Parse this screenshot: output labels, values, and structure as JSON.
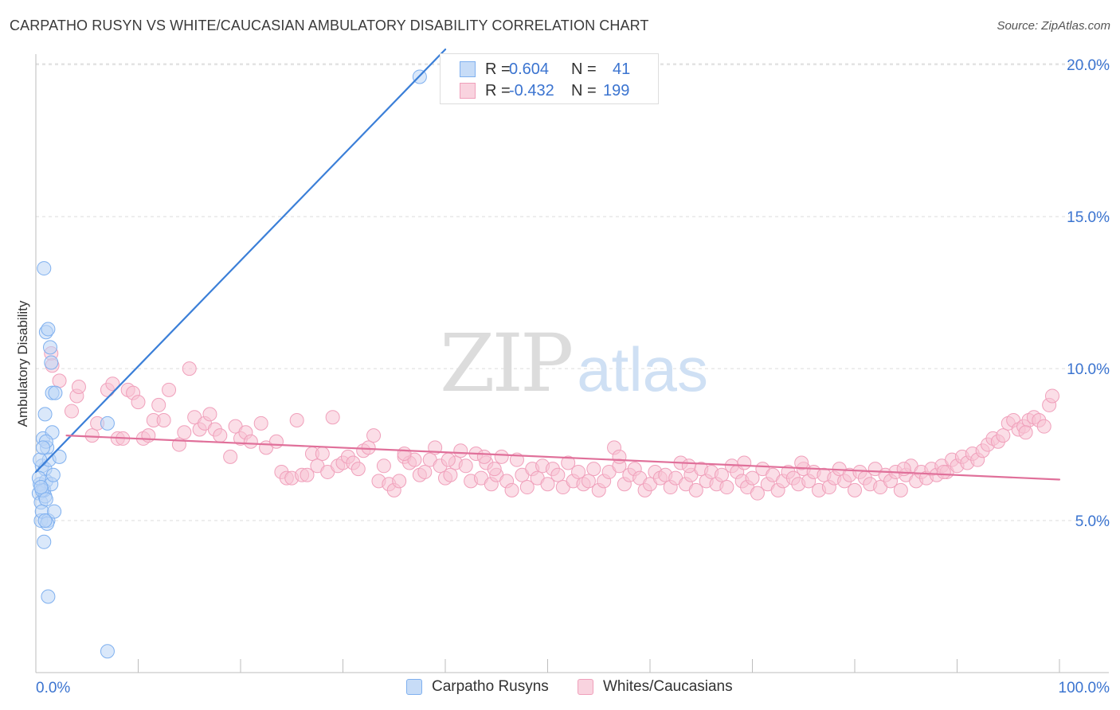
{
  "title": "CARPATHO RUSYN VS WHITE/CAUCASIAN AMBULATORY DISABILITY CORRELATION CHART",
  "source": "Source: ZipAtlas.com",
  "watermark": {
    "zip": "ZIP",
    "atlas": "atlas"
  },
  "legend": {
    "rows": [
      {
        "r_label": "R =",
        "r_value": "0.604",
        "n_label": "N =",
        "n_value": "41",
        "color": "#7fb0ef",
        "fill": "#c7dcf7"
      },
      {
        "r_label": "R =",
        "r_value": "-0.432",
        "n_label": "N =",
        "n_value": "199",
        "color": "#f0a0bb",
        "fill": "#f9d3df"
      }
    ]
  },
  "bottom_legend": [
    "Carpatho Rusyns",
    "Whites/Caucasians"
  ],
  "chart_data": {
    "type": "scatter",
    "title": "CARPATHO RUSYN VS WHITE/CAUCASIAN AMBULATORY DISABILITY CORRELATION CHART",
    "xlabel": "",
    "ylabel": "Ambulatory Disability",
    "xlim": [
      0,
      100
    ],
    "ylim": [
      0,
      21
    ],
    "x_tick_labels": [
      "0.0%",
      "100.0%"
    ],
    "y_ticks": [
      5,
      10,
      15,
      20
    ],
    "y_tick_labels": [
      "5.0%",
      "10.0%",
      "15.0%",
      "20.0%"
    ],
    "grid": true,
    "series": [
      {
        "name": "Carpatho Rusyns",
        "color": "#3b7fd8",
        "fill": "#bcd5f5",
        "stroke": "#7fb0ef",
        "trend": [
          [
            0.0,
            6.6
          ],
          [
            40.0,
            20.5
          ]
        ],
        "points": [
          [
            0.3,
            5.9
          ],
          [
            0.5,
            5.6
          ],
          [
            0.4,
            6.2
          ],
          [
            0.6,
            6.8
          ],
          [
            0.7,
            7.7
          ],
          [
            0.5,
            5.0
          ],
          [
            0.8,
            4.3
          ],
          [
            0.9,
            5.8
          ],
          [
            1.0,
            6.3
          ],
          [
            1.1,
            7.4
          ],
          [
            0.6,
            5.3
          ],
          [
            0.8,
            6.0
          ],
          [
            1.2,
            5.0
          ],
          [
            0.9,
            6.7
          ],
          [
            1.0,
            11.2
          ],
          [
            1.2,
            11.3
          ],
          [
            1.4,
            10.7
          ],
          [
            1.5,
            10.2
          ],
          [
            1.6,
            9.2
          ],
          [
            0.8,
            13.3
          ],
          [
            0.9,
            8.5
          ],
          [
            1.3,
            7.0
          ],
          [
            1.5,
            6.2
          ],
          [
            1.7,
            6.5
          ],
          [
            1.9,
            9.2
          ],
          [
            1.6,
            7.9
          ],
          [
            1.8,
            5.3
          ],
          [
            2.3,
            7.1
          ],
          [
            1.0,
            7.6
          ],
          [
            0.4,
            7.0
          ],
          [
            0.6,
            6.0
          ],
          [
            1.1,
            4.9
          ],
          [
            1.2,
            2.5
          ],
          [
            7.0,
            8.2
          ],
          [
            7.0,
            0.7
          ],
          [
            37.5,
            19.6
          ],
          [
            0.3,
            6.4
          ],
          [
            0.7,
            7.4
          ],
          [
            0.5,
            6.1
          ],
          [
            1.0,
            5.7
          ],
          [
            0.9,
            5.0
          ]
        ]
      },
      {
        "name": "Whites/Caucasians",
        "color": "#e0709a",
        "fill": "#f7c3d3",
        "stroke": "#f0a0bb",
        "trend": [
          [
            3.0,
            7.8
          ],
          [
            100.0,
            6.35
          ]
        ],
        "points": [
          [
            1.5,
            10.5
          ],
          [
            1.6,
            10.1
          ],
          [
            2.3,
            9.6
          ],
          [
            3.5,
            8.6
          ],
          [
            4.0,
            9.1
          ],
          [
            4.2,
            9.4
          ],
          [
            5.5,
            7.8
          ],
          [
            6.0,
            8.2
          ],
          [
            7.0,
            9.3
          ],
          [
            7.5,
            9.5
          ],
          [
            8.0,
            7.7
          ],
          [
            8.5,
            7.7
          ],
          [
            9.0,
            9.3
          ],
          [
            9.5,
            9.2
          ],
          [
            10.0,
            8.9
          ],
          [
            10.5,
            7.7
          ],
          [
            11.0,
            7.8
          ],
          [
            11.5,
            8.3
          ],
          [
            12.0,
            8.8
          ],
          [
            12.5,
            8.3
          ],
          [
            13.0,
            9.3
          ],
          [
            14.0,
            7.5
          ],
          [
            14.5,
            7.9
          ],
          [
            15.0,
            10.0
          ],
          [
            15.5,
            8.4
          ],
          [
            16.0,
            8.0
          ],
          [
            16.5,
            8.2
          ],
          [
            17.0,
            8.5
          ],
          [
            17.5,
            8.0
          ],
          [
            18.0,
            7.8
          ],
          [
            19.0,
            7.1
          ],
          [
            19.5,
            8.1
          ],
          [
            20.0,
            7.7
          ],
          [
            20.5,
            7.9
          ],
          [
            21.0,
            7.6
          ],
          [
            22.0,
            8.2
          ],
          [
            22.5,
            7.4
          ],
          [
            23.5,
            7.6
          ],
          [
            24.0,
            6.6
          ],
          [
            24.5,
            6.4
          ],
          [
            25.0,
            6.4
          ],
          [
            25.5,
            8.3
          ],
          [
            26.0,
            6.5
          ],
          [
            26.5,
            6.5
          ],
          [
            27.0,
            7.2
          ],
          [
            27.5,
            6.8
          ],
          [
            28.0,
            7.2
          ],
          [
            28.5,
            6.6
          ],
          [
            29.0,
            8.4
          ],
          [
            29.5,
            6.8
          ],
          [
            30.0,
            6.9
          ],
          [
            30.5,
            7.1
          ],
          [
            31.0,
            6.9
          ],
          [
            31.5,
            6.7
          ],
          [
            32.0,
            7.3
          ],
          [
            32.5,
            7.4
          ],
          [
            33.0,
            7.8
          ],
          [
            33.5,
            6.3
          ],
          [
            34.0,
            6.8
          ],
          [
            34.5,
            6.2
          ],
          [
            35.0,
            6.0
          ],
          [
            35.5,
            6.3
          ],
          [
            36.0,
            7.1
          ],
          [
            36.5,
            6.9
          ],
          [
            37.0,
            7.0
          ],
          [
            37.5,
            6.5
          ],
          [
            38.0,
            6.6
          ],
          [
            38.5,
            7.0
          ],
          [
            39.0,
            7.4
          ],
          [
            39.5,
            6.8
          ],
          [
            40.0,
            6.4
          ],
          [
            40.5,
            6.5
          ],
          [
            41.0,
            6.9
          ],
          [
            41.5,
            7.3
          ],
          [
            42.0,
            6.8
          ],
          [
            42.5,
            6.3
          ],
          [
            43.0,
            7.2
          ],
          [
            43.5,
            6.4
          ],
          [
            44.0,
            6.9
          ],
          [
            44.5,
            6.2
          ],
          [
            45.0,
            6.5
          ],
          [
            45.5,
            7.1
          ],
          [
            46.0,
            6.3
          ],
          [
            46.5,
            6.0
          ],
          [
            47.0,
            7.0
          ],
          [
            47.5,
            6.5
          ],
          [
            48.0,
            6.1
          ],
          [
            48.5,
            6.7
          ],
          [
            49.0,
            6.4
          ],
          [
            49.5,
            6.8
          ],
          [
            50.0,
            6.2
          ],
          [
            50.5,
            6.7
          ],
          [
            51.0,
            6.5
          ],
          [
            51.5,
            6.1
          ],
          [
            52.0,
            6.9
          ],
          [
            52.5,
            6.3
          ],
          [
            53.0,
            6.6
          ],
          [
            53.5,
            6.2
          ],
          [
            54.0,
            6.3
          ],
          [
            54.5,
            6.7
          ],
          [
            55.0,
            6.0
          ],
          [
            55.5,
            6.3
          ],
          [
            56.0,
            6.6
          ],
          [
            56.5,
            7.4
          ],
          [
            57.0,
            6.8
          ],
          [
            57.5,
            6.2
          ],
          [
            58.0,
            6.5
          ],
          [
            58.5,
            6.7
          ],
          [
            59.0,
            6.4
          ],
          [
            59.5,
            6.0
          ],
          [
            60.0,
            6.2
          ],
          [
            60.5,
            6.6
          ],
          [
            61.0,
            6.4
          ],
          [
            61.5,
            6.5
          ],
          [
            62.0,
            6.1
          ],
          [
            62.5,
            6.4
          ],
          [
            63.0,
            6.9
          ],
          [
            63.5,
            6.2
          ],
          [
            64.0,
            6.5
          ],
          [
            64.5,
            6.0
          ],
          [
            65.0,
            6.7
          ],
          [
            65.5,
            6.3
          ],
          [
            66.0,
            6.6
          ],
          [
            66.5,
            6.2
          ],
          [
            67.0,
            6.5
          ],
          [
            67.5,
            6.1
          ],
          [
            68.0,
            6.8
          ],
          [
            68.5,
            6.6
          ],
          [
            69.0,
            6.3
          ],
          [
            69.5,
            6.1
          ],
          [
            70.0,
            6.4
          ],
          [
            70.5,
            5.9
          ],
          [
            71.0,
            6.7
          ],
          [
            71.5,
            6.2
          ],
          [
            72.0,
            6.5
          ],
          [
            72.5,
            6.0
          ],
          [
            73.0,
            6.3
          ],
          [
            73.5,
            6.6
          ],
          [
            74.0,
            6.4
          ],
          [
            74.5,
            6.2
          ],
          [
            75.0,
            6.7
          ],
          [
            75.5,
            6.3
          ],
          [
            76.0,
            6.6
          ],
          [
            76.5,
            6.0
          ],
          [
            77.0,
            6.5
          ],
          [
            77.5,
            6.1
          ],
          [
            78.0,
            6.4
          ],
          [
            78.5,
            6.7
          ],
          [
            79.0,
            6.3
          ],
          [
            79.5,
            6.5
          ],
          [
            80.0,
            6.0
          ],
          [
            80.5,
            6.6
          ],
          [
            81.0,
            6.4
          ],
          [
            81.5,
            6.2
          ],
          [
            82.0,
            6.7
          ],
          [
            82.5,
            6.1
          ],
          [
            83.0,
            6.5
          ],
          [
            83.5,
            6.3
          ],
          [
            84.0,
            6.6
          ],
          [
            84.5,
            6.0
          ],
          [
            85.0,
            6.5
          ],
          [
            85.5,
            6.8
          ],
          [
            86.0,
            6.3
          ],
          [
            86.5,
            6.6
          ],
          [
            87.0,
            6.4
          ],
          [
            87.5,
            6.7
          ],
          [
            88.0,
            6.5
          ],
          [
            88.5,
            6.8
          ],
          [
            89.0,
            6.6
          ],
          [
            89.5,
            7.0
          ],
          [
            90.0,
            6.8
          ],
          [
            90.5,
            7.1
          ],
          [
            91.0,
            6.9
          ],
          [
            91.5,
            7.2
          ],
          [
            92.0,
            7.0
          ],
          [
            92.5,
            7.3
          ],
          [
            93.0,
            7.5
          ],
          [
            93.5,
            7.7
          ],
          [
            94.0,
            7.6
          ],
          [
            94.5,
            7.8
          ],
          [
            95.0,
            8.2
          ],
          [
            95.5,
            8.3
          ],
          [
            96.0,
            8.0
          ],
          [
            96.5,
            8.1
          ],
          [
            97.0,
            8.3
          ],
          [
            97.5,
            8.4
          ],
          [
            98.0,
            8.3
          ],
          [
            98.5,
            8.1
          ],
          [
            99.0,
            8.8
          ],
          [
            99.3,
            9.1
          ],
          [
            36.0,
            7.2
          ],
          [
            40.3,
            7.0
          ],
          [
            44.8,
            6.7
          ],
          [
            57.0,
            7.1
          ],
          [
            63.8,
            6.8
          ],
          [
            69.2,
            6.9
          ],
          [
            74.8,
            6.9
          ],
          [
            84.8,
            6.7
          ],
          [
            88.7,
            6.6
          ],
          [
            96.7,
            7.9
          ],
          [
            43.8,
            7.1
          ]
        ]
      }
    ]
  }
}
